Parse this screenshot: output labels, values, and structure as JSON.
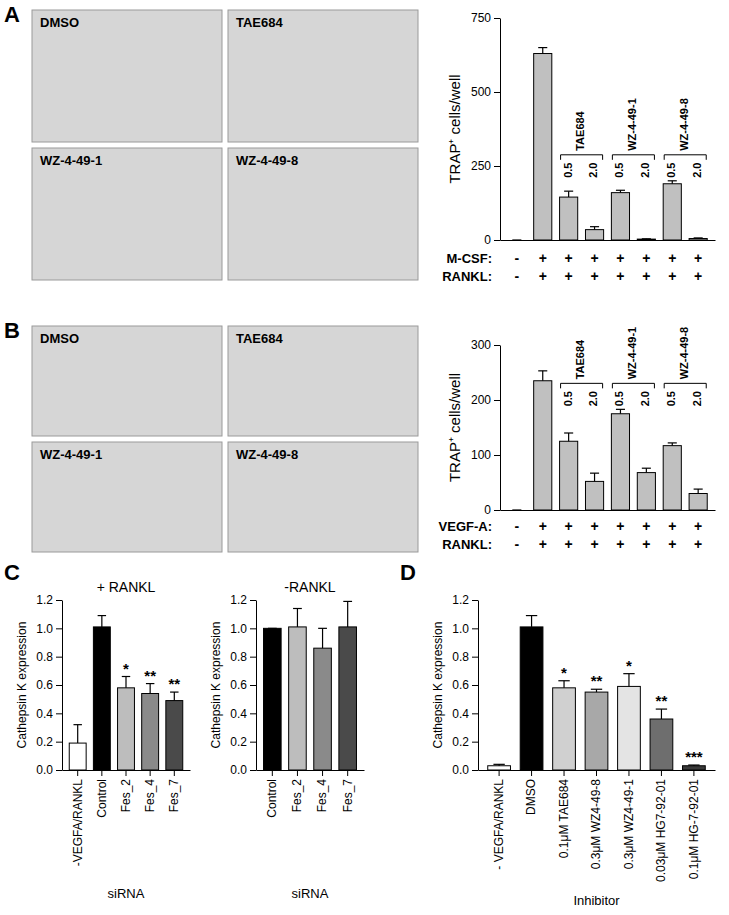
{
  "panel_labels": [
    "A",
    "B",
    "C",
    "D"
  ],
  "images": {
    "A": [
      "DMSO",
      "TAE684",
      "WZ-4-49-1",
      "WZ-4-49-8"
    ],
    "B": [
      "DMSO",
      "TAE684",
      "WZ-4-49-1",
      "WZ-4-49-8"
    ]
  },
  "chart_data": [
    {
      "type": "bar",
      "y_label": "TRAP⁺ cells/well",
      "categories": [
        null,
        null,
        "0.5",
        "2.0",
        "0.5",
        "2.0",
        "0.5",
        "2.0"
      ],
      "values": [
        0,
        630,
        145,
        35,
        160,
        3,
        190,
        5
      ],
      "errors": [
        0,
        20,
        20,
        10,
        8,
        1,
        10,
        2
      ],
      "color": "#c0c0c0",
      "ylim": [
        0,
        750
      ],
      "yticks": [
        0,
        250,
        500,
        750
      ],
      "group_labels": [
        null,
        null,
        "TAE684",
        "TAE684",
        "WZ-4-49-1",
        "WZ-4-49-1",
        "WZ-4-49-8",
        "WZ-4-49-8"
      ],
      "conditions": [
        {
          "name": "M-CSF:",
          "values": [
            "-",
            "+",
            "+",
            "+",
            "+",
            "+",
            "+",
            "+"
          ]
        },
        {
          "name": "RANKL:",
          "values": [
            "-",
            "+",
            "+",
            "+",
            "+",
            "+",
            "+",
            "+"
          ]
        }
      ]
    },
    {
      "type": "bar",
      "y_label": "TRAP⁺ cells/well",
      "categories": [
        null,
        null,
        "0.5",
        "2.0",
        "0.5",
        "2.0",
        "0.5",
        "2.0"
      ],
      "values": [
        0,
        235,
        125,
        52,
        175,
        68,
        117,
        30
      ],
      "errors": [
        0,
        18,
        15,
        15,
        8,
        8,
        5,
        8
      ],
      "color": "#c0c0c0",
      "ylim": [
        0,
        300
      ],
      "yticks": [
        0,
        100,
        200,
        300
      ],
      "group_labels": [
        null,
        null,
        "TAE684",
        "TAE684",
        "WZ-4-49-1",
        "WZ-4-49-1",
        "WZ-4-49-8",
        "WZ-4-49-8"
      ],
      "conditions": [
        {
          "name": "VEGF-A:",
          "values": [
            "-",
            "+",
            "+",
            "+",
            "+",
            "+",
            "+",
            "+"
          ]
        },
        {
          "name": "RANKL:",
          "values": [
            "-",
            "+",
            "+",
            "+",
            "+",
            "+",
            "+",
            "+"
          ]
        }
      ]
    },
    {
      "type": "bar",
      "title": "+ RANKL",
      "y_label": "Cathepsin K expression",
      "x_label": "siRNA",
      "categories": [
        "-VEGFA/RANKL",
        "Control",
        "Fes_2",
        "Fes_4",
        "Fes_7"
      ],
      "values": [
        0.19,
        1.01,
        0.58,
        0.54,
        0.49
      ],
      "errors": [
        0.13,
        0.08,
        0.08,
        0.07,
        0.06
      ],
      "colors": [
        "#ffffff",
        "#000000",
        "#bdbdbd",
        "#8a8a8a",
        "#4a4a4a"
      ],
      "annotations": [
        null,
        null,
        "*",
        "**",
        "**"
      ],
      "ylim": [
        0,
        1.2
      ],
      "yticks": [
        {
          "value": 0,
          "label": "0.0"
        },
        0.2,
        0.4,
        0.6,
        0.8,
        {
          "value": 1,
          "label": "1.0"
        },
        1.2
      ]
    },
    {
      "type": "bar",
      "title": "-RANKL",
      "y_label": "Cathepsin K expression",
      "x_label": "siRNA",
      "categories": [
        "Control",
        "Fes_2",
        "Fes_4",
        "Fes_7"
      ],
      "values": [
        1.0,
        1.01,
        0.86,
        1.01
      ],
      "errors": [
        0,
        0.13,
        0.14,
        0.18
      ],
      "colors": [
        "#000000",
        "#bdbdbd",
        "#8a8a8a",
        "#4a4a4a"
      ],
      "ylim": [
        0,
        1.2
      ],
      "yticks": [
        {
          "value": 0,
          "label": "0.0"
        },
        0.2,
        0.4,
        0.6,
        0.8,
        {
          "value": 1,
          "label": "1.0"
        },
        1.2
      ]
    },
    {
      "type": "bar",
      "y_label": "Cathepsin K expression",
      "x_label": "Inhibitor",
      "categories": [
        "- VEGFA/RANKL",
        "DMSO",
        "0.1μM TAE684",
        "0.3μM WZ4-49-8",
        "0.3μM WZ4-49-1",
        "0.03μM HG7-92-01",
        "0.1μM HG-7-92-01"
      ],
      "values": [
        0.03,
        1.01,
        0.58,
        0.55,
        0.59,
        0.36,
        0.03
      ],
      "errors": [
        0.01,
        0.08,
        0.05,
        0.02,
        0.09,
        0.07,
        0.005
      ],
      "colors": [
        "#ffffff",
        "#000000",
        "#d0d0d0",
        "#a8a8a8",
        "#e4e4e4",
        "#6e6e6e",
        "#3a3a3a"
      ],
      "annotations": [
        null,
        null,
        "*",
        "**",
        "*",
        "**",
        "***"
      ],
      "ylim": [
        0,
        1.2
      ],
      "yticks": [
        {
          "value": 0,
          "label": "0.0"
        },
        0.2,
        0.4,
        0.6,
        0.8,
        {
          "value": 1,
          "label": "1.0"
        },
        1.2
      ]
    }
  ]
}
